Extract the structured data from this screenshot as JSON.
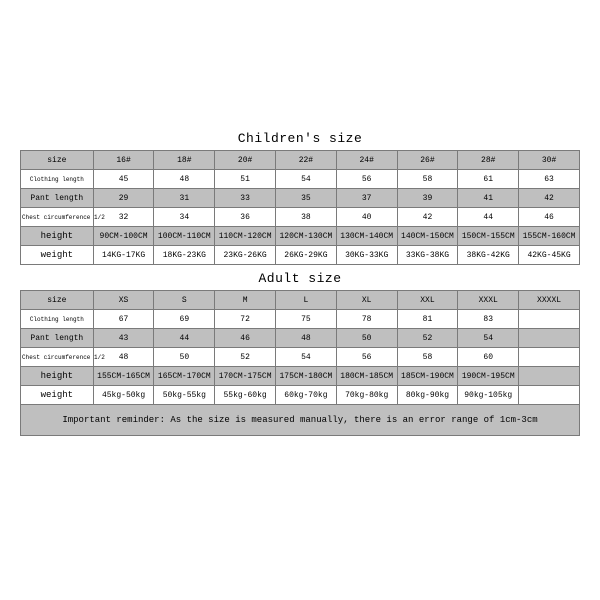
{
  "children": {
    "title": "Children's size",
    "row_labels": [
      "size",
      "Clothing length",
      "Pant length",
      "Chest circumference 1/2",
      "height",
      "weight"
    ],
    "rows": [
      [
        "16#",
        "18#",
        "20#",
        "22#",
        "24#",
        "26#",
        "28#",
        "30#"
      ],
      [
        "45",
        "48",
        "51",
        "54",
        "56",
        "58",
        "61",
        "63"
      ],
      [
        "29",
        "31",
        "33",
        "35",
        "37",
        "39",
        "41",
        "42"
      ],
      [
        "32",
        "34",
        "36",
        "38",
        "40",
        "42",
        "44",
        "46"
      ],
      [
        "90CM-100CM",
        "100CM-110CM",
        "110CM-120CM",
        "120CM-130CM",
        "130CM-140CM",
        "140CM-150CM",
        "150CM-155CM",
        "155CM-160CM"
      ],
      [
        "14KG-17KG",
        "18KG-23KG",
        "23KG-26KG",
        "26KG-29KG",
        "30KG-33KG",
        "33KG-38KG",
        "38KG-42KG",
        "42KG-45KG"
      ]
    ],
    "row_classes": [
      "gray",
      "white",
      "gray",
      "white",
      "gray",
      "white"
    ],
    "label_classes": [
      "label",
      "label-sm",
      "label",
      "label-sm",
      "label-big",
      "label-big"
    ]
  },
  "adult": {
    "title": "Adult size",
    "row_labels": [
      "size",
      "Clothing length",
      "Pant length",
      "Chest circumference 1/2",
      "height",
      "weight"
    ],
    "rows": [
      [
        "XS",
        "S",
        "M",
        "L",
        "XL",
        "XXL",
        "XXXL",
        "XXXXL"
      ],
      [
        "67",
        "69",
        "72",
        "75",
        "78",
        "81",
        "83",
        ""
      ],
      [
        "43",
        "44",
        "46",
        "48",
        "50",
        "52",
        "54",
        ""
      ],
      [
        "48",
        "50",
        "52",
        "54",
        "56",
        "58",
        "60",
        ""
      ],
      [
        "155CM-165CM",
        "165CM-170CM",
        "170CM-175CM",
        "175CM-180CM",
        "180CM-185CM",
        "185CM-190CM",
        "190CM-195CM",
        ""
      ],
      [
        "45kg-50kg",
        "50kg-55kg",
        "55kg-60kg",
        "60kg-70kg",
        "70kg-80kg",
        "80kg-90kg",
        "90kg-105kg",
        ""
      ]
    ],
    "row_classes": [
      "gray",
      "white",
      "gray",
      "white",
      "gray",
      "white"
    ],
    "label_classes": [
      "label",
      "label-sm",
      "label",
      "label-sm",
      "label-big",
      "label-big"
    ]
  },
  "reminder": "Important reminder: As the size is measured manually, there is an error range of 1cm-3cm",
  "colors": {
    "gray": "#bfbfbf",
    "border": "#7a7a7a",
    "white": "#ffffff"
  }
}
